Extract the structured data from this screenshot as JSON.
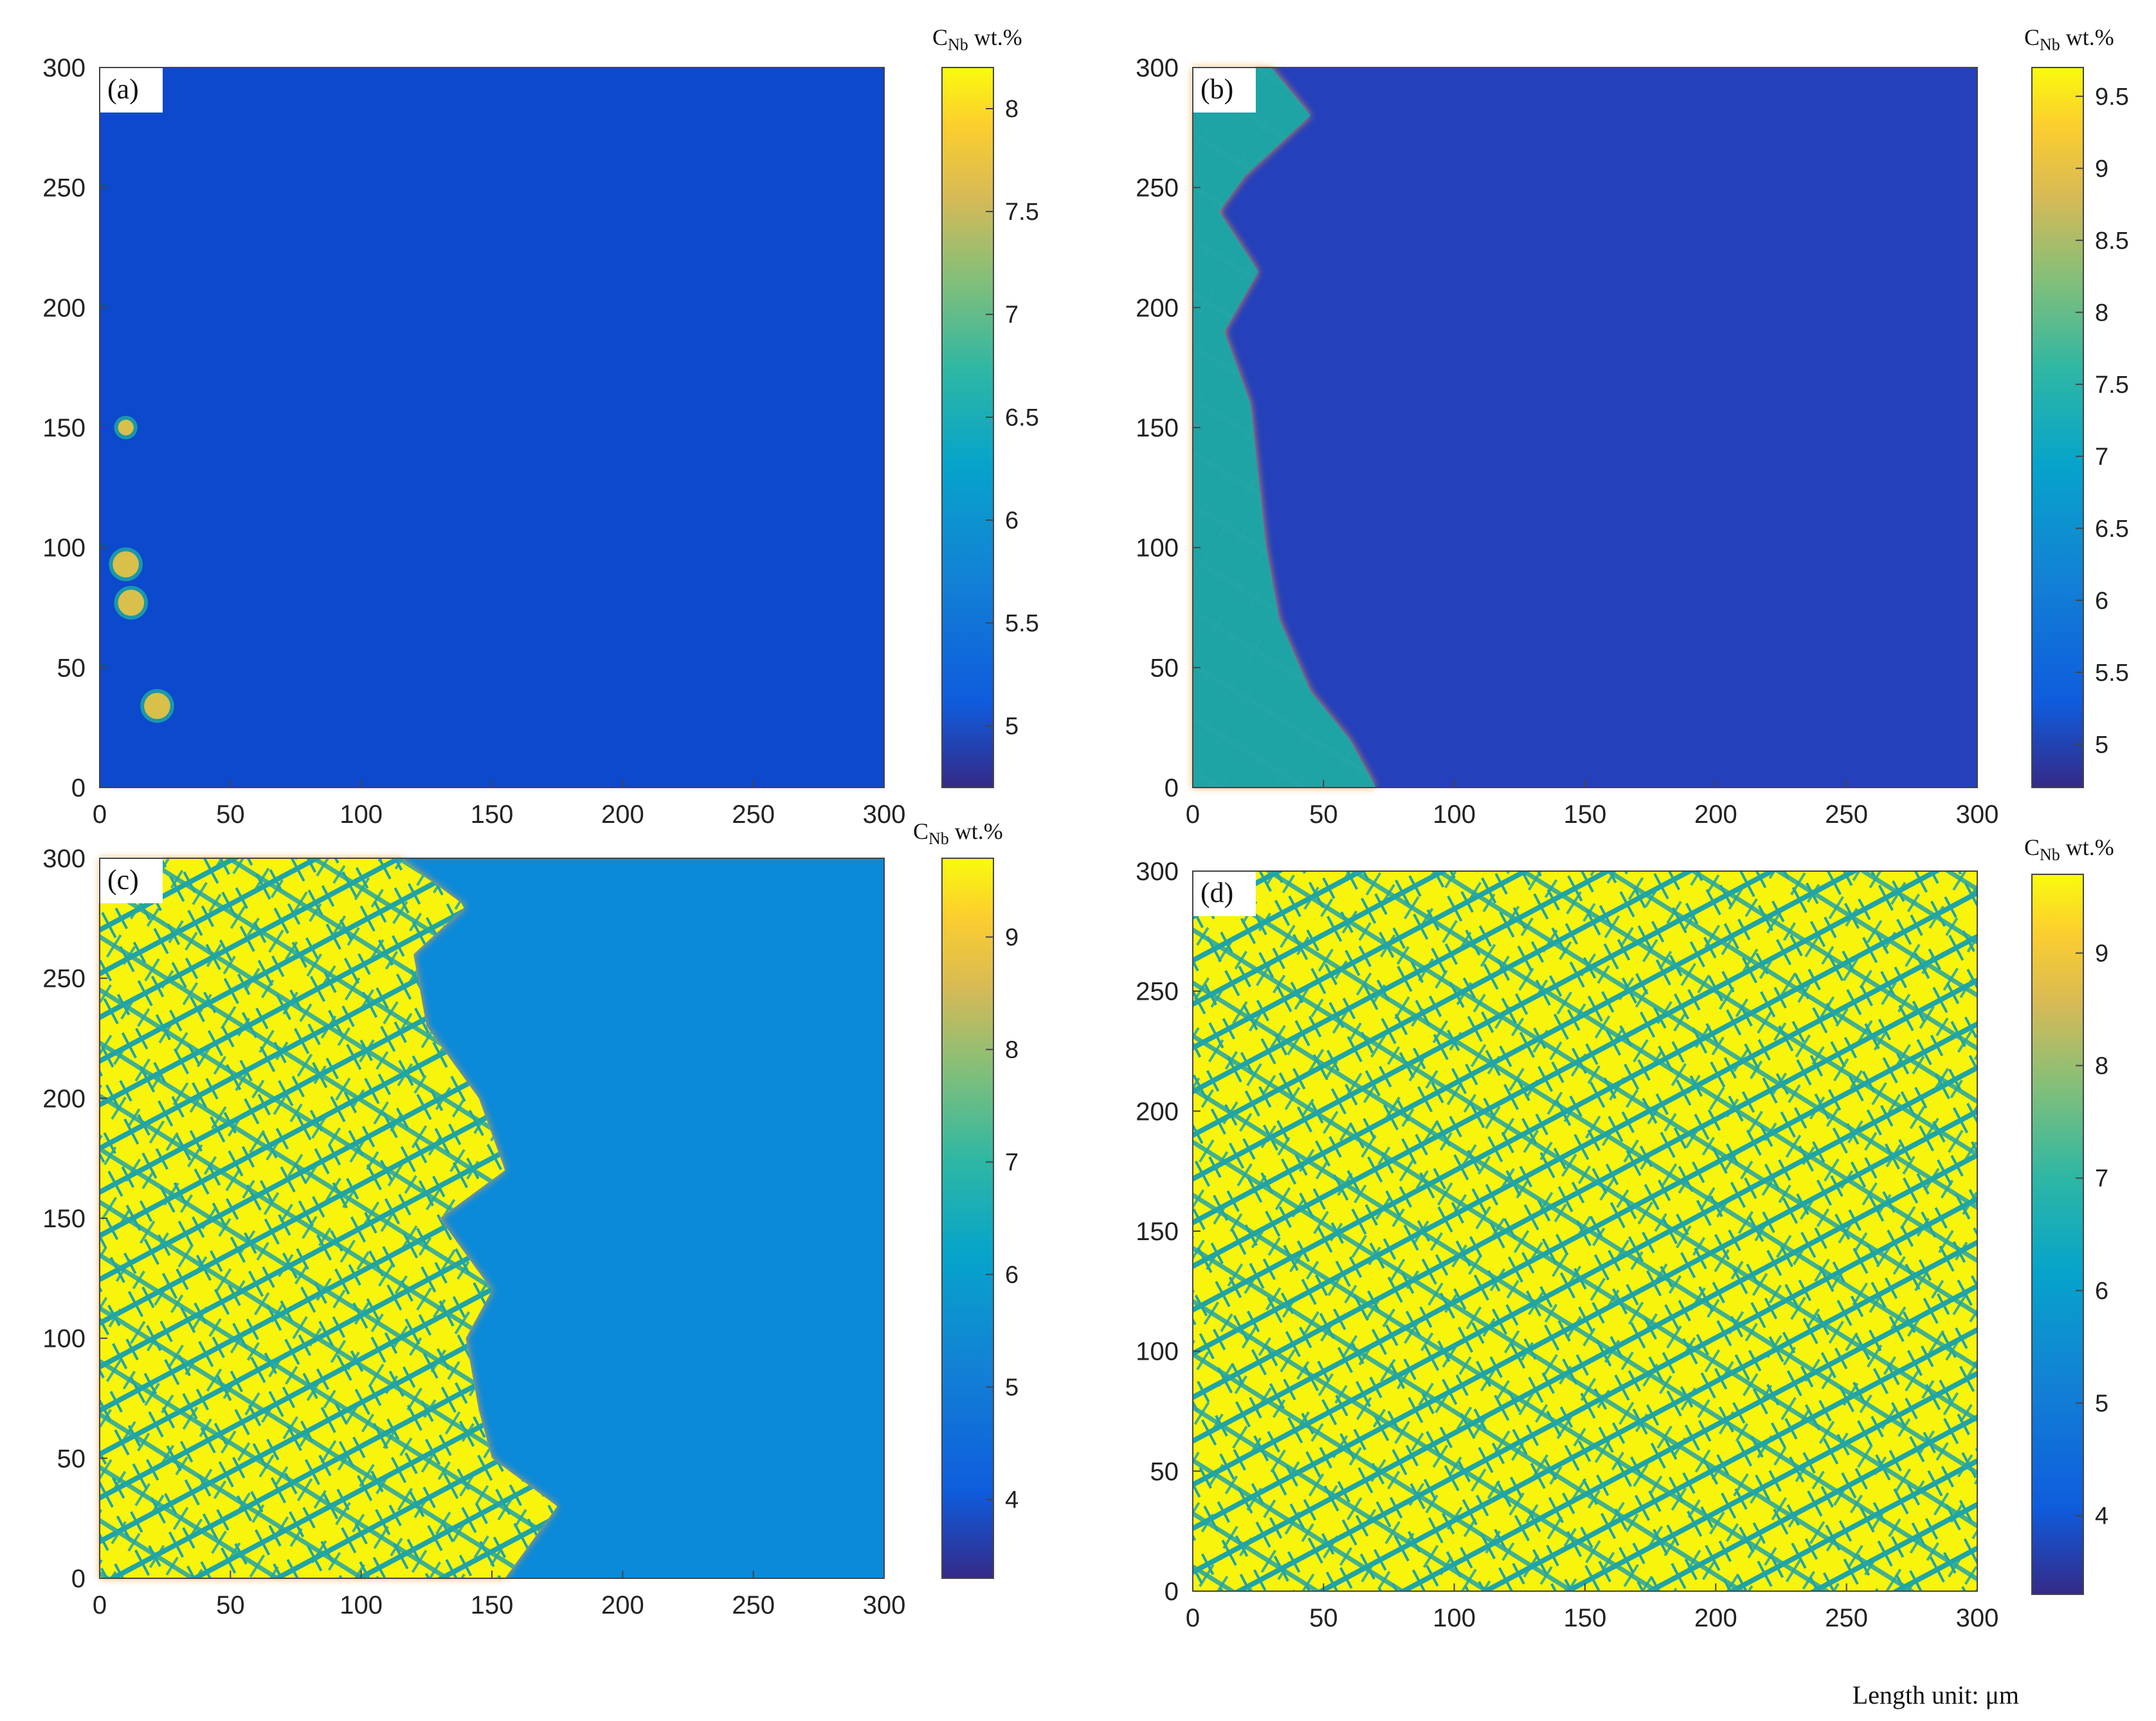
{
  "chart_data": [
    {
      "type": "heatmap",
      "panel_label": "(a)",
      "xlim": [
        0,
        300
      ],
      "ylim": [
        0,
        300
      ],
      "xticks": [
        "0",
        "50",
        "100",
        "150",
        "200",
        "250",
        "300"
      ],
      "yticks": [
        "0",
        "50",
        "100",
        "150",
        "200",
        "250",
        "300"
      ],
      "colorbar": {
        "label_main": "C",
        "label_sub": "Nb",
        "label_unit": " wt.%",
        "min": 4.7,
        "max": 8.2,
        "ticks": [
          "5",
          "5.5",
          "6",
          "6.5",
          "7",
          "7.5",
          "8"
        ]
      },
      "background_value": 5.1,
      "nuclei": [
        {
          "x": 10,
          "y": 150,
          "r": 3
        },
        {
          "x": 10,
          "y": 93,
          "r": 5
        },
        {
          "x": 12,
          "y": 77,
          "r": 5
        },
        {
          "x": 22,
          "y": 34,
          "r": 5
        }
      ]
    },
    {
      "type": "heatmap",
      "panel_label": "(b)",
      "xlim": [
        0,
        300
      ],
      "ylim": [
        0,
        300
      ],
      "xticks": [
        "0",
        "50",
        "100",
        "150",
        "200",
        "250",
        "300"
      ],
      "yticks": [
        "0",
        "50",
        "100",
        "150",
        "200",
        "250",
        "300"
      ],
      "colorbar": {
        "label_main": "C",
        "label_sub": "Nb",
        "label_unit": " wt.%",
        "min": 4.7,
        "max": 9.7,
        "ticks": [
          "5",
          "5.5",
          "6",
          "6.5",
          "7",
          "7.5",
          "8",
          "8.5",
          "9",
          "9.5"
        ]
      },
      "background_value": 5.2,
      "solid_front_um": [
        [
          300,
          30
        ],
        [
          280,
          45
        ],
        [
          255,
          20
        ],
        [
          240,
          10
        ],
        [
          215,
          25
        ],
        [
          190,
          12
        ],
        [
          160,
          22
        ],
        [
          130,
          25
        ],
        [
          100,
          28
        ],
        [
          70,
          33
        ],
        [
          40,
          45
        ],
        [
          20,
          60
        ],
        [
          0,
          70
        ]
      ]
    },
    {
      "type": "heatmap",
      "panel_label": "(c)",
      "xlim": [
        0,
        300
      ],
      "ylim": [
        0,
        300
      ],
      "xticks": [
        "0",
        "50",
        "100",
        "150",
        "200",
        "250",
        "300"
      ],
      "yticks": [
        "0",
        "50",
        "100",
        "150",
        "200",
        "250",
        "300"
      ],
      "colorbar": {
        "label_main": "C",
        "label_sub": "Nb",
        "label_unit": " wt.%",
        "min": 3.3,
        "max": 9.7,
        "ticks": [
          "4",
          "5",
          "6",
          "7",
          "8",
          "9"
        ]
      },
      "background_value": 5.4,
      "solid_front_um": [
        [
          300,
          115
        ],
        [
          280,
          140
        ],
        [
          260,
          120
        ],
        [
          230,
          125
        ],
        [
          200,
          145
        ],
        [
          170,
          155
        ],
        [
          150,
          130
        ],
        [
          120,
          150
        ],
        [
          100,
          140
        ],
        [
          70,
          145
        ],
        [
          50,
          150
        ],
        [
          30,
          175
        ],
        [
          0,
          155
        ]
      ]
    },
    {
      "type": "heatmap",
      "panel_label": "(d)",
      "xlim": [
        0,
        300
      ],
      "ylim": [
        0,
        300
      ],
      "xticks": [
        "0",
        "50",
        "100",
        "150",
        "200",
        "250",
        "300"
      ],
      "yticks": [
        "0",
        "50",
        "100",
        "150",
        "200",
        "250",
        "300"
      ],
      "colorbar": {
        "label_main": "C",
        "label_sub": "Nb",
        "label_unit": " wt.%",
        "min": 3.3,
        "max": 9.7,
        "ticks": [
          "4",
          "5",
          "6",
          "7",
          "8",
          "9"
        ]
      },
      "background_value": 9.6,
      "solid_front_um": []
    }
  ],
  "footer_note": "Length unit: μm",
  "colors": {
    "parula_low": "#352a87",
    "parula_blue": "#0f5cdd",
    "parula_teal": "#1aa7b2",
    "parula_green": "#5fbd8a",
    "parula_orange": "#f5b83a",
    "parula_yellow": "#f9fb0e",
    "dendrite": "#23a8a8",
    "liquid_bg_a": "#0c49cc",
    "liquid_bg_b": "#253bbc",
    "liquid_bg_c": "#0b8ad9"
  }
}
